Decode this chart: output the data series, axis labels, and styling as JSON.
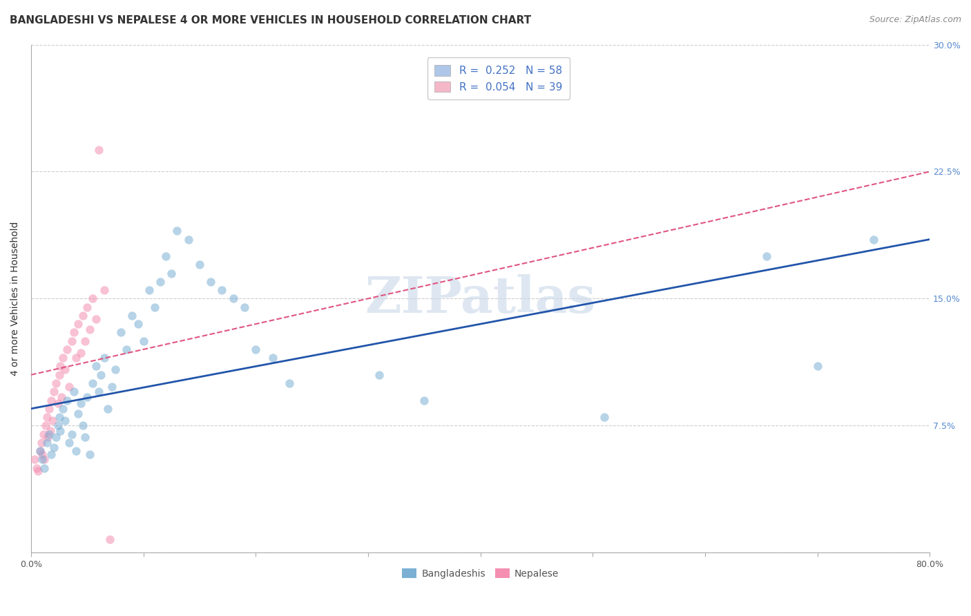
{
  "title": "BANGLADESHI VS NEPALESE 4 OR MORE VEHICLES IN HOUSEHOLD CORRELATION CHART",
  "source": "Source: ZipAtlas.com",
  "ylabel": "4 or more Vehicles in Household",
  "xlim": [
    0.0,
    0.8
  ],
  "ylim": [
    0.0,
    0.3
  ],
  "ytick_positions": [
    0.0,
    0.075,
    0.15,
    0.225,
    0.3
  ],
  "ytick_labels_right": [
    "",
    "7.5%",
    "15.0%",
    "22.5%",
    "30.0%"
  ],
  "xtick_positions": [
    0.0,
    0.1,
    0.2,
    0.3,
    0.4,
    0.5,
    0.6,
    0.7,
    0.8
  ],
  "xtick_labels": [
    "0.0%",
    "",
    "",
    "",
    "",
    "",
    "",
    "",
    "80.0%"
  ],
  "legend_entries": [
    {
      "color": "#aec6e8",
      "label": "R =  0.252   N = 58",
      "text_color": "#4472c4"
    },
    {
      "color": "#f4b8c8",
      "label": "R =  0.054   N = 39",
      "text_color": "#4472c4"
    }
  ],
  "watermark": "ZIPatlas",
  "bangladeshi_scatter_x": [
    0.008,
    0.01,
    0.012,
    0.014,
    0.016,
    0.018,
    0.02,
    0.022,
    0.024,
    0.025,
    0.026,
    0.028,
    0.03,
    0.032,
    0.034,
    0.036,
    0.038,
    0.04,
    0.042,
    0.044,
    0.046,
    0.048,
    0.05,
    0.052,
    0.055,
    0.058,
    0.06,
    0.062,
    0.065,
    0.068,
    0.072,
    0.075,
    0.08,
    0.085,
    0.09,
    0.095,
    0.1,
    0.105,
    0.11,
    0.115,
    0.12,
    0.125,
    0.13,
    0.14,
    0.15,
    0.16,
    0.17,
    0.18,
    0.19,
    0.2,
    0.215,
    0.23,
    0.31,
    0.35,
    0.51,
    0.655,
    0.7,
    0.75
  ],
  "bangladeshi_scatter_y": [
    0.06,
    0.055,
    0.05,
    0.065,
    0.07,
    0.058,
    0.062,
    0.068,
    0.075,
    0.08,
    0.072,
    0.085,
    0.078,
    0.09,
    0.065,
    0.07,
    0.095,
    0.06,
    0.082,
    0.088,
    0.075,
    0.068,
    0.092,
    0.058,
    0.1,
    0.11,
    0.095,
    0.105,
    0.115,
    0.085,
    0.098,
    0.108,
    0.13,
    0.12,
    0.14,
    0.135,
    0.125,
    0.155,
    0.145,
    0.16,
    0.175,
    0.165,
    0.19,
    0.185,
    0.17,
    0.16,
    0.155,
    0.15,
    0.145,
    0.12,
    0.115,
    0.1,
    0.105,
    0.09,
    0.08,
    0.175,
    0.11,
    0.185
  ],
  "nepalese_scatter_x": [
    0.003,
    0.005,
    0.006,
    0.008,
    0.009,
    0.01,
    0.011,
    0.012,
    0.013,
    0.014,
    0.015,
    0.016,
    0.017,
    0.018,
    0.019,
    0.02,
    0.022,
    0.024,
    0.025,
    0.026,
    0.027,
    0.028,
    0.03,
    0.032,
    0.034,
    0.036,
    0.038,
    0.04,
    0.042,
    0.044,
    0.046,
    0.048,
    0.05,
    0.052,
    0.055,
    0.058,
    0.06,
    0.065,
    0.07
  ],
  "nepalese_scatter_y": [
    0.055,
    0.05,
    0.048,
    0.06,
    0.065,
    0.058,
    0.07,
    0.055,
    0.075,
    0.08,
    0.068,
    0.085,
    0.072,
    0.09,
    0.078,
    0.095,
    0.1,
    0.088,
    0.105,
    0.11,
    0.092,
    0.115,
    0.108,
    0.12,
    0.098,
    0.125,
    0.13,
    0.115,
    0.135,
    0.118,
    0.14,
    0.125,
    0.145,
    0.132,
    0.15,
    0.138,
    0.238,
    0.155,
    0.008
  ],
  "bangladeshi_color": "#7bafd4",
  "nepalese_color": "#f48fb1",
  "bangladeshi_line_color": "#2255aa",
  "nepalese_line_color": "#e05580",
  "scatter_alpha": 0.55,
  "scatter_size": 80,
  "background_color": "#ffffff",
  "grid_color": "#cccccc",
  "title_fontsize": 11,
  "source_fontsize": 9,
  "axis_label_fontsize": 10,
  "tick_fontsize": 9,
  "legend_fontsize": 11,
  "watermark_color": "#c8d8e8",
  "watermark_fontsize": 52,
  "bangladeshi_R": 0.252,
  "nepalese_R": 0.054,
  "bangladeshi_line_x0": 0.0,
  "bangladeshi_line_y0": 0.085,
  "bangladeshi_line_x1": 0.8,
  "bangladeshi_line_y1": 0.185,
  "nepalese_line_x0": 0.0,
  "nepalese_line_y0": 0.105,
  "nepalese_line_x1": 0.8,
  "nepalese_line_y1": 0.225
}
